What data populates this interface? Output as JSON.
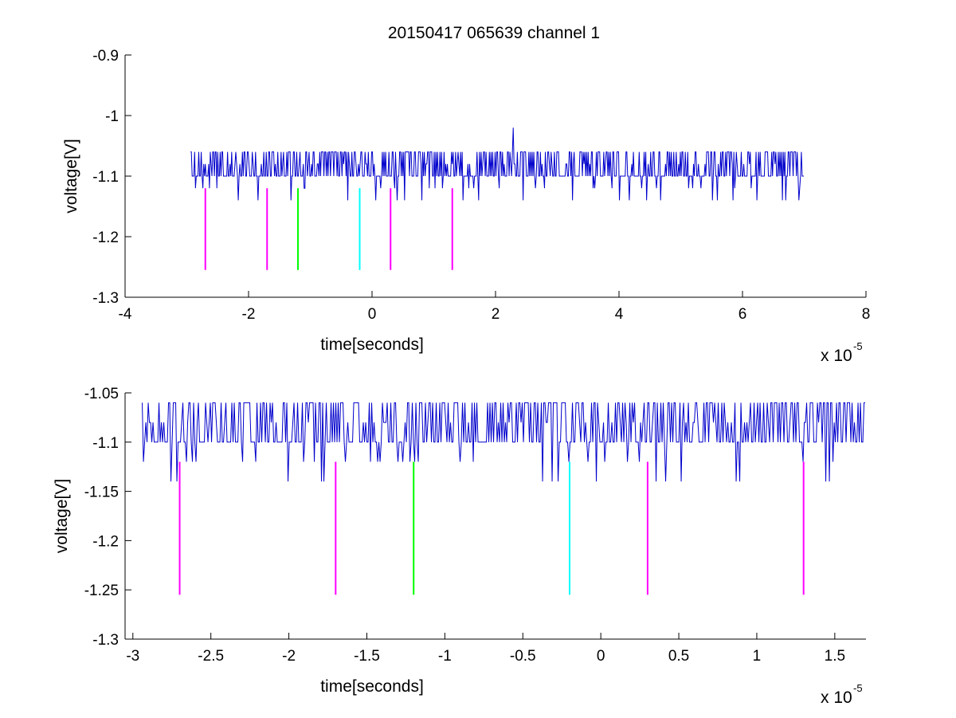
{
  "figure": {
    "title": "20150417 065639 channel 1"
  },
  "chart_data": [
    {
      "type": "line",
      "title": "20150417 065639 channel 1",
      "xlabel": "time[seconds]",
      "ylabel": "voltage[V]",
      "x_multiplier": "x 10",
      "x_multiplier_exponent": "-5",
      "xlim": [
        -4,
        8
      ],
      "ylim": [
        -1.3,
        -0.9
      ],
      "xticks": [
        -4,
        -2,
        0,
        2,
        4,
        6,
        8
      ],
      "xtick_labels": [
        "-4",
        "-2",
        "0",
        "2",
        "4",
        "6",
        "8"
      ],
      "yticks": [
        -0.9,
        -1,
        -1.1,
        -1.2,
        -1.3
      ],
      "ytick_labels": [
        "-0.9",
        "-1",
        "-1.1",
        "-1.2",
        "-1.3"
      ],
      "grid": false,
      "signal": {
        "x_start": -2.94,
        "x_end": 7.0,
        "baseline": -1.1,
        "levels": [
          -1.14,
          -1.12,
          -1.1,
          -1.08,
          -1.06
        ],
        "spike": {
          "x": 2.28,
          "y": -1.02
        },
        "color": "#0000cc"
      },
      "markers": [
        {
          "x": -2.7,
          "y_top": -1.12,
          "y_bottom": -1.255,
          "color": "#ff00ff"
        },
        {
          "x": -1.7,
          "y_top": -1.12,
          "y_bottom": -1.255,
          "color": "#ff00ff"
        },
        {
          "x": -1.2,
          "y_top": -1.12,
          "y_bottom": -1.255,
          "color": "#00ff00"
        },
        {
          "x": -0.2,
          "y_top": -1.12,
          "y_bottom": -1.255,
          "color": "#00ffff"
        },
        {
          "x": 0.3,
          "y_top": -1.12,
          "y_bottom": -1.255,
          "color": "#ff00ff"
        },
        {
          "x": 1.3,
          "y_top": -1.12,
          "y_bottom": -1.255,
          "color": "#ff00ff"
        }
      ]
    },
    {
      "type": "line",
      "title": "",
      "xlabel": "time[seconds]",
      "ylabel": "voltage[V]",
      "x_multiplier": "x 10",
      "x_multiplier_exponent": "-5",
      "xlim": [
        -3.05,
        1.7
      ],
      "ylim": [
        -1.3,
        -1.05
      ],
      "xticks": [
        -3,
        -2.5,
        -2,
        -1.5,
        -1,
        -0.5,
        0,
        0.5,
        1,
        1.5
      ],
      "xtick_labels": [
        "-3",
        "-2.5",
        "-2",
        "-1.5",
        "-1",
        "-0.5",
        "0",
        "0.5",
        "1",
        "1.5"
      ],
      "yticks": [
        -1.05,
        -1.1,
        -1.15,
        -1.2,
        -1.25,
        -1.3
      ],
      "ytick_labels": [
        "-1.05",
        "-1.1",
        "-1.15",
        "-1.2",
        "-1.25",
        "-1.3"
      ],
      "grid": false,
      "signal": {
        "x_start": -2.94,
        "x_end": 1.7,
        "baseline": -1.1,
        "levels": [
          -1.14,
          -1.12,
          -1.1,
          -1.08,
          -1.06
        ],
        "color": "#0000cc"
      },
      "markers": [
        {
          "x": -2.7,
          "y_top": -1.12,
          "y_bottom": -1.255,
          "color": "#ff00ff"
        },
        {
          "x": -1.7,
          "y_top": -1.12,
          "y_bottom": -1.255,
          "color": "#ff00ff"
        },
        {
          "x": -1.2,
          "y_top": -1.12,
          "y_bottom": -1.255,
          "color": "#00ff00"
        },
        {
          "x": -0.2,
          "y_top": -1.12,
          "y_bottom": -1.255,
          "color": "#00ffff"
        },
        {
          "x": 0.3,
          "y_top": -1.12,
          "y_bottom": -1.255,
          "color": "#ff00ff"
        },
        {
          "x": 1.3,
          "y_top": -1.12,
          "y_bottom": -1.255,
          "color": "#ff00ff"
        }
      ]
    }
  ]
}
